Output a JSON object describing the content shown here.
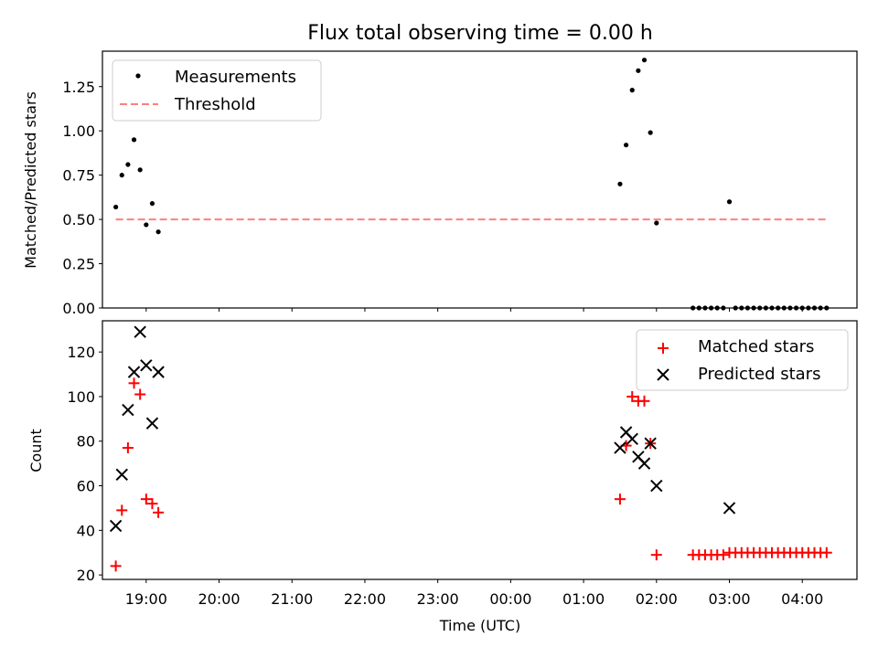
{
  "title": "Flux total observing time = 0.00 h",
  "colors": {
    "measurement": "#000000",
    "threshold": "#ff7f7f",
    "matched": "#ff0000",
    "predicted": "#000000"
  },
  "chart_data": [
    {
      "type": "scatter",
      "panel": "top",
      "ylabel": "Matched/Predicted stars",
      "ylim": [
        0,
        1.45
      ],
      "yticks": [
        "0.00",
        "0.25",
        "0.50",
        "0.75",
        "1.00",
        "1.25"
      ],
      "grid": false,
      "legend_position": "upper-left",
      "series": [
        {
          "name": "Measurements",
          "marker": "dot",
          "x": [
            "18:35",
            "18:40",
            "18:45",
            "18:50",
            "18:55",
            "19:00",
            "19:05",
            "19:10",
            "01:30",
            "01:35",
            "01:40",
            "01:45",
            "01:50",
            "01:55",
            "02:00",
            "02:30",
            "02:35",
            "02:40",
            "02:45",
            "02:50",
            "02:55",
            "03:00",
            "03:05",
            "03:10",
            "03:15",
            "03:20",
            "03:25",
            "03:30",
            "03:35",
            "03:40",
            "03:45",
            "03:50",
            "03:55",
            "04:00",
            "04:05",
            "04:10",
            "04:15",
            "04:20"
          ],
          "y": [
            0.57,
            0.75,
            0.81,
            0.95,
            0.78,
            0.47,
            0.59,
            0.43,
            0.7,
            0.92,
            1.23,
            1.34,
            1.4,
            0.99,
            0.48,
            0,
            0,
            0,
            0,
            0,
            0,
            0.6,
            0,
            0,
            0,
            0,
            0,
            0,
            0,
            0,
            0,
            0,
            0,
            0,
            0,
            0,
            0,
            0
          ]
        },
        {
          "name": "Threshold",
          "style": "dashed",
          "x": [
            "18:35",
            "04:20"
          ],
          "y": [
            0.5,
            0.5
          ]
        }
      ]
    },
    {
      "type": "scatter",
      "panel": "bottom",
      "xlabel": "Time (UTC)",
      "ylabel": "Count",
      "ylim": [
        18,
        134
      ],
      "yticks": [
        "20",
        "40",
        "60",
        "80",
        "100",
        "120"
      ],
      "xticks": [
        "19:00",
        "20:00",
        "21:00",
        "22:00",
        "23:00",
        "00:00",
        "01:00",
        "02:00",
        "03:00",
        "04:00"
      ],
      "grid": false,
      "legend_position": "upper-right",
      "series": [
        {
          "name": "Matched stars",
          "marker": "plus",
          "x": [
            "18:35",
            "18:40",
            "18:45",
            "18:50",
            "18:55",
            "19:00",
            "19:05",
            "19:10",
            "01:30",
            "01:35",
            "01:40",
            "01:45",
            "01:50",
            "01:55",
            "02:00",
            "02:30",
            "02:35",
            "02:40",
            "02:45",
            "02:50",
            "02:55",
            "03:00",
            "03:05",
            "03:10",
            "03:15",
            "03:20",
            "03:25",
            "03:30",
            "03:35",
            "03:40",
            "03:45",
            "03:50",
            "03:55",
            "04:00",
            "04:05",
            "04:10",
            "04:15",
            "04:20"
          ],
          "y": [
            24,
            49,
            77,
            106,
            101,
            54,
            52,
            48,
            54,
            78,
            100,
            98,
            98,
            79,
            29,
            29,
            29,
            29,
            29,
            29,
            29,
            30,
            30,
            30,
            30,
            30,
            30,
            30,
            30,
            30,
            30,
            30,
            30,
            30,
            30,
            30,
            30,
            30
          ]
        },
        {
          "name": "Predicted stars",
          "marker": "x",
          "x": [
            "18:35",
            "18:40",
            "18:45",
            "18:50",
            "18:55",
            "19:00",
            "19:05",
            "19:10",
            "01:30",
            "01:35",
            "01:40",
            "01:45",
            "01:50",
            "01:55",
            "02:00",
            "03:00"
          ],
          "y": [
            42,
            65,
            94,
            111,
            129,
            114,
            88,
            111,
            77,
            84,
            81,
            73,
            70,
            79,
            60,
            50
          ]
        }
      ]
    }
  ]
}
